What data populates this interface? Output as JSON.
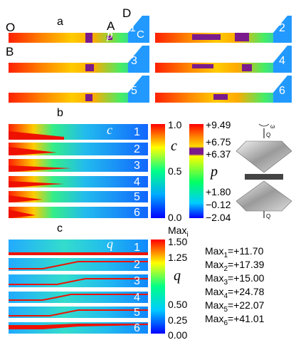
{
  "panel_a": {
    "letter": "a",
    "point_labels": {
      "O": "O",
      "A": "A",
      "D": "D",
      "B": "B",
      "C": "C",
      "p": "p"
    },
    "case_numbers": [
      "1",
      "2",
      "3",
      "4",
      "5",
      "6"
    ]
  },
  "panel_b": {
    "letter": "b",
    "field_label": "c",
    "case_numbers": [
      "1",
      "2",
      "3",
      "4",
      "5",
      "6"
    ]
  },
  "panel_c": {
    "letter": "c",
    "field_label": "q",
    "case_numbers": [
      "1",
      "2",
      "3",
      "4",
      "5",
      "6"
    ]
  },
  "colorbar_c": {
    "title": "c",
    "ticks": [
      "1.0",
      "0.5",
      "0.0"
    ],
    "colors": [
      "#ff0000",
      "#ffff00",
      "#00ff88",
      "#00aaff",
      "#0000ff"
    ]
  },
  "colorbar_p": {
    "title": "p",
    "ticks": [
      "+9.49",
      "+6.75",
      "+6.37",
      "+1.80",
      "−0.12",
      "−2.04"
    ],
    "colors": [
      "#ff0000",
      "#ff8800",
      "#ffdd00",
      "#7a1a8c",
      "#ffff00",
      "#00ff66",
      "#00ccff",
      "#0000ff"
    ]
  },
  "colorbar_q": {
    "title": "q",
    "header": "Max",
    "header_sub": "i",
    "ticks": [
      "1.50",
      "1.25",
      "0.50",
      "0.25",
      "0.00"
    ],
    "colors": [
      "#ff0000",
      "#ffff00",
      "#00ff88",
      "#00ccff",
      "#0000ff"
    ]
  },
  "maxima": [
    {
      "label": "Max",
      "sub": "1",
      "value": "=+11.70"
    },
    {
      "label": "Max",
      "sub": "2",
      "value": "=+17.39"
    },
    {
      "label": "Max",
      "sub": "3",
      "value": "=+15.00"
    },
    {
      "label": "Max",
      "sub": "4",
      "value": "=+24.78"
    },
    {
      "label": "Max",
      "sub": "5",
      "value": "=+22.07"
    },
    {
      "label": "Max",
      "sub": "6",
      "value": "=+41.01"
    }
  ],
  "anvil": {
    "top_force": "Q",
    "bottom_force": "Q",
    "rotation": "ω"
  }
}
